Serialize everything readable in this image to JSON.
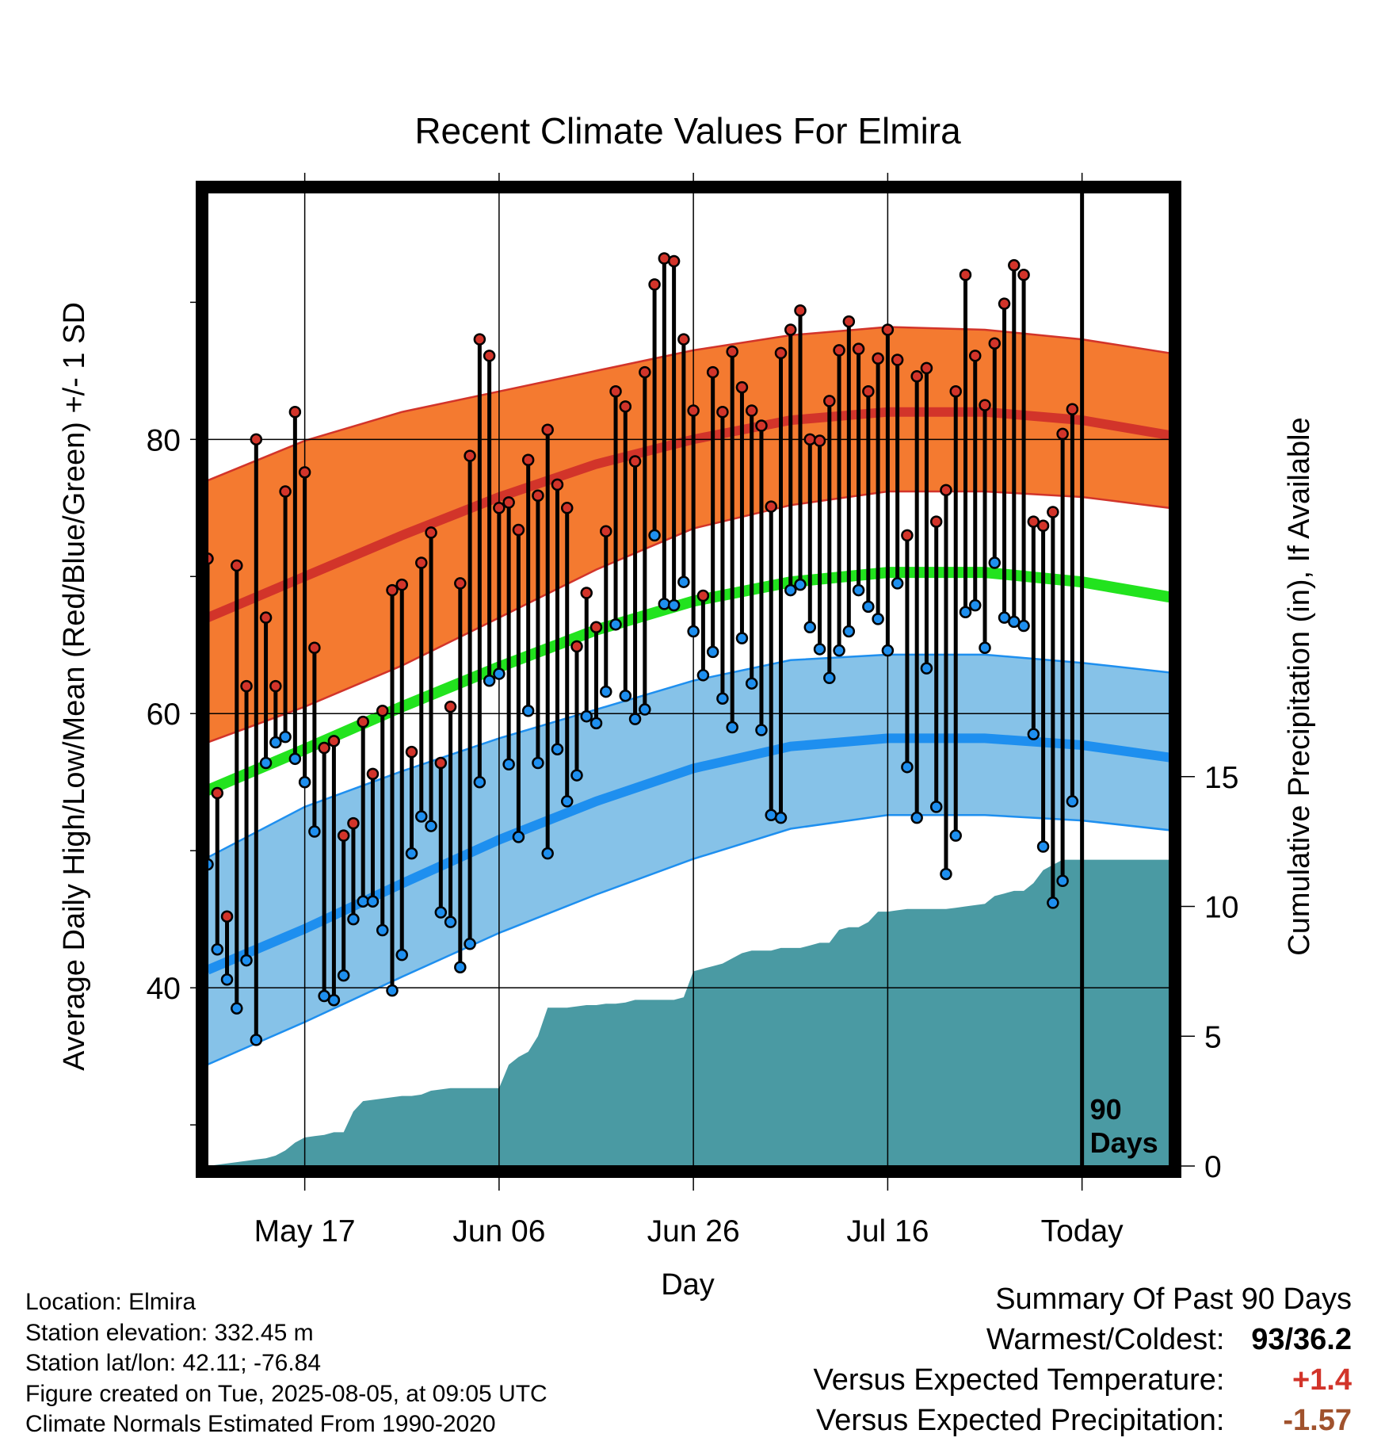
{
  "title": "Recent Climate Values For Elmira",
  "footer": {
    "location": "Location: Elmira",
    "elevation": "Station elevation: 332.45 m",
    "latlon": "Station lat/lon: 42.11; -76.84",
    "created": "Figure created on Tue, 2025-08-05, at 09:05 UTC",
    "normals": "Climate Normals Estimated From 1990-2020"
  },
  "summary": {
    "heading": "Summary Of Past 90 Days",
    "warmest_coldest_label": "Warmest/Coldest:",
    "warmest_coldest_value": "93/36.2",
    "temp_label": "Versus Expected Temperature:",
    "temp_value": "+1.4",
    "precip_label": "Versus Expected Precipitation:",
    "precip_value": "-1.57"
  },
  "colors": {
    "high_band": "#f47a30",
    "high_mean": "#d2342a",
    "low_band": "#86c2e8",
    "low_mean": "#1e8fef",
    "daily_mean": "#22e31e",
    "precip": "#4a9aa3",
    "high_dot": "#d2342a",
    "low_dot": "#1e8fef"
  },
  "chart_data": {
    "type": "line",
    "title": "Recent Climate Values For Elmira",
    "xlabel": "Day",
    "ylabel": "Average Daily High/Low/Mean (Red/Blue/Green) +/- 1 SD",
    "y2label": "Cumulative Precipitation (in), If Available",
    "x_start": "2025-05-07",
    "x_range": [
      "2025-05-07",
      "2025-08-14"
    ],
    "ylim": [
      27,
      98
    ],
    "y_ticks": [
      40,
      60,
      80
    ],
    "y2lim": [
      0,
      37.5
    ],
    "y2_ticks": [
      0,
      5,
      10,
      15
    ],
    "x_ticks": [
      {
        "date": "2025-05-17",
        "label": "May 17"
      },
      {
        "date": "2025-06-06",
        "label": "Jun 06"
      },
      {
        "date": "2025-06-26",
        "label": "Jun 26"
      },
      {
        "date": "2025-07-16",
        "label": "Jul 16"
      },
      {
        "date": "2025-08-05",
        "label": "Today"
      }
    ],
    "today_line": "2025-08-05",
    "today_label": [
      "90",
      "Days"
    ],
    "grid": true,
    "normals": {
      "dates": [
        "2025-05-07",
        "2025-05-17",
        "2025-05-27",
        "2025-06-06",
        "2025-06-16",
        "2025-06-26",
        "2025-07-06",
        "2025-07-16",
        "2025-07-26",
        "2025-08-05",
        "2025-08-14"
      ],
      "high_mean": [
        67.0,
        70.0,
        73.0,
        75.8,
        78.2,
        80.0,
        81.4,
        82.0,
        82.0,
        81.4,
        80.3
      ],
      "high_upper": [
        77.0,
        79.9,
        82.0,
        83.5,
        85.0,
        86.5,
        87.6,
        88.2,
        88.0,
        87.3,
        86.3
      ],
      "high_lower": [
        57.9,
        60.5,
        63.5,
        67.0,
        70.5,
        73.5,
        75.2,
        76.2,
        76.2,
        75.8,
        75.0
      ],
      "low_mean": [
        41.3,
        44.3,
        47.6,
        50.8,
        53.6,
        56.0,
        57.6,
        58.2,
        58.2,
        57.7,
        56.8
      ],
      "low_upper": [
        49.5,
        53.2,
        55.8,
        58.2,
        60.3,
        62.4,
        63.9,
        64.3,
        64.3,
        63.7,
        63.0
      ],
      "low_lower": [
        34.4,
        37.5,
        40.8,
        44.0,
        46.8,
        49.4,
        51.6,
        52.6,
        52.6,
        52.2,
        51.5
      ],
      "daily_mean": [
        54.4,
        57.4,
        60.5,
        63.4,
        66.1,
        68.2,
        69.6,
        70.3,
        70.3,
        69.6,
        68.5
      ]
    },
    "series": [
      {
        "name": "High",
        "values": [
          71.3,
          54.2,
          45.2,
          70.8,
          62.0,
          80.0,
          67.0,
          62.0,
          76.2,
          82.0,
          77.6,
          64.8,
          57.5,
          58.0,
          51.1,
          52.0,
          59.4,
          55.6,
          60.2,
          69.0,
          69.4,
          57.2,
          71.0,
          73.2,
          56.4,
          60.5,
          69.5,
          78.8,
          87.3,
          86.1,
          75.0,
          75.4,
          73.4,
          78.5,
          75.9,
          80.7,
          76.7,
          75.0,
          64.9,
          68.8,
          66.3,
          73.3,
          83.5,
          82.4,
          78.4,
          84.9,
          91.3,
          93.2,
          93.0,
          87.3,
          82.1,
          68.6,
          84.9,
          82.0,
          86.4,
          83.8,
          82.1,
          81.0,
          75.1,
          86.3,
          88.0,
          89.4,
          80.0,
          79.9,
          82.8,
          86.5,
          88.6,
          86.6,
          83.5,
          85.9,
          88.0,
          85.8,
          73.0,
          84.6,
          85.2,
          74.0,
          76.3,
          83.5,
          92.0,
          86.1,
          82.5,
          87.0,
          89.9,
          92.7,
          92.0,
          74.0,
          73.7,
          74.7,
          80.4,
          82.2
        ]
      },
      {
        "name": "Low",
        "values": [
          49.0,
          42.8,
          40.6,
          38.5,
          42.0,
          36.2,
          56.4,
          57.9,
          58.3,
          56.7,
          55.0,
          51.4,
          39.4,
          39.1,
          40.9,
          45.0,
          46.3,
          46.3,
          44.2,
          39.8,
          42.4,
          49.8,
          52.5,
          51.8,
          45.5,
          44.8,
          41.5,
          43.2,
          55.0,
          62.4,
          62.9,
          56.3,
          51.0,
          60.2,
          56.4,
          49.8,
          57.4,
          53.6,
          55.5,
          59.8,
          59.3,
          61.6,
          66.5,
          61.3,
          59.6,
          60.3,
          73.0,
          68.0,
          67.9,
          69.6,
          66.0,
          62.8,
          64.5,
          61.1,
          59.0,
          65.5,
          62.2,
          58.8,
          52.6,
          52.4,
          69.0,
          69.4,
          66.3,
          64.7,
          62.6,
          64.6,
          66.0,
          69.0,
          67.8,
          66.9,
          64.6,
          69.5,
          56.1,
          52.4,
          63.3,
          53.2,
          48.3,
          51.1,
          67.4,
          67.9,
          64.8,
          71.0,
          67.0,
          66.7,
          66.4,
          58.5,
          50.3,
          46.2,
          47.8,
          53.6
        ]
      },
      {
        "name": "Cumulative Precipitation",
        "values": [
          0.0,
          0.05,
          0.1,
          0.15,
          0.2,
          0.25,
          0.3,
          0.4,
          0.6,
          0.9,
          1.1,
          1.15,
          1.2,
          1.3,
          1.3,
          2.1,
          2.5,
          2.55,
          2.6,
          2.65,
          2.7,
          2.7,
          2.75,
          2.9,
          2.95,
          3.0,
          3.0,
          3.0,
          3.0,
          3.0,
          3.0,
          3.9,
          4.2,
          4.4,
          5.0,
          6.1,
          6.1,
          6.1,
          6.15,
          6.2,
          6.2,
          6.25,
          6.25,
          6.3,
          6.4,
          6.4,
          6.4,
          6.4,
          6.4,
          6.5,
          7.5,
          7.6,
          7.7,
          7.8,
          8.0,
          8.2,
          8.3,
          8.3,
          8.3,
          8.4,
          8.4,
          8.4,
          8.5,
          8.6,
          8.6,
          9.1,
          9.2,
          9.2,
          9.4,
          9.8,
          9.8,
          9.85,
          9.9,
          9.9,
          9.9,
          9.9,
          9.9,
          9.95,
          10.0,
          10.05,
          10.1,
          10.4,
          10.5,
          10.6,
          10.6,
          10.9,
          11.4,
          11.6,
          11.8,
          11.8,
          11.8,
          11.8,
          11.8,
          11.8,
          11.8,
          11.8,
          11.8,
          11.8,
          11.8
        ]
      }
    ]
  }
}
